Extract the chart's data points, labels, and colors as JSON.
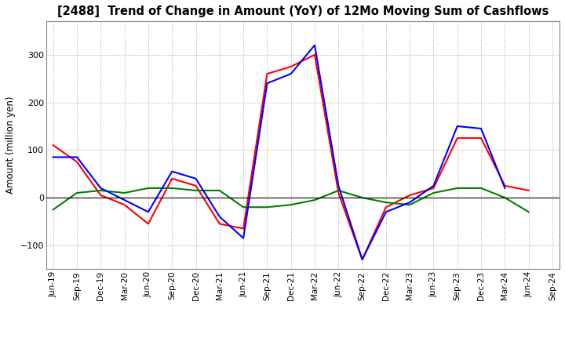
{
  "title": "[2488]  Trend of Change in Amount (YoY) of 12Mo Moving Sum of Cashflows",
  "ylabel": "Amount (million yen)",
  "background_color": "#ffffff",
  "grid_color": "#999999",
  "x_labels": [
    "Jun-19",
    "Sep-19",
    "Dec-19",
    "Mar-20",
    "Jun-20",
    "Sep-20",
    "Dec-20",
    "Mar-21",
    "Jun-21",
    "Sep-21",
    "Dec-21",
    "Mar-22",
    "Jun-22",
    "Sep-22",
    "Dec-22",
    "Mar-23",
    "Jun-23",
    "Sep-23",
    "Dec-23",
    "Mar-24",
    "Jun-24",
    "Sep-24"
  ],
  "operating": [
    110,
    75,
    5,
    -15,
    -55,
    40,
    25,
    -55,
    -65,
    260,
    275,
    300,
    10,
    -130,
    -20,
    5,
    20,
    125,
    125,
    25,
    15,
    null
  ],
  "investing": [
    -25,
    10,
    15,
    10,
    20,
    20,
    15,
    15,
    -20,
    -20,
    -15,
    -5,
    15,
    0,
    -10,
    -15,
    10,
    20,
    20,
    0,
    -30,
    null
  ],
  "free": [
    85,
    85,
    20,
    -5,
    -30,
    55,
    40,
    -40,
    -85,
    240,
    260,
    320,
    25,
    -130,
    -30,
    -10,
    25,
    150,
    145,
    20,
    null,
    null
  ],
  "operating_color": "#ff0000",
  "investing_color": "#008000",
  "free_color": "#0000ff",
  "ylim": [
    -150,
    370
  ],
  "yticks": [
    -100,
    0,
    100,
    200,
    300
  ]
}
